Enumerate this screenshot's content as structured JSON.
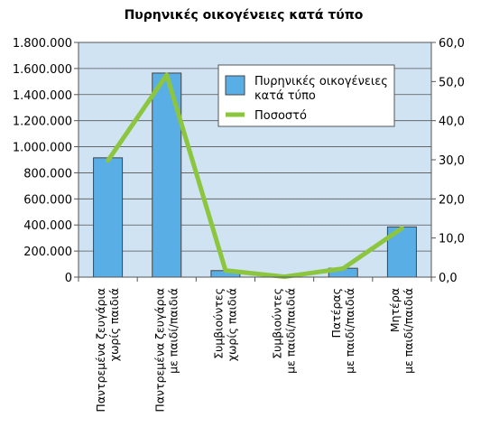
{
  "chart_data": {
    "type": "bar",
    "title": "Πυρηνικές οικογένειες κατά τύπο",
    "categories": [
      [
        "Παντρεμένα ζευγάρια",
        "χωρίς παιδιά"
      ],
      [
        "Παντρεμένα ζευγάρια",
        "με παιδί/παιδιά"
      ],
      [
        "Συμβιούντες",
        "χωρίς παιδιά"
      ],
      [
        "Συμβιούντες",
        "με παιδί/παιδιά"
      ],
      [
        "Πατέρας",
        "με παιδί/παιδιά"
      ],
      [
        "Μητέρα",
        "με παιδί/παιδιά"
      ]
    ],
    "series": [
      {
        "name": "Πυρηνικές οικογένειες κατά τύπο",
        "type": "bar",
        "axis": "left",
        "color": "#5aaee6",
        "values": [
          915000,
          1565000,
          50000,
          3000,
          68000,
          385000
        ]
      },
      {
        "name": "Ποσοστό",
        "type": "line",
        "axis": "right",
        "color": "#8cc63f",
        "values": [
          29.8,
          51.7,
          1.7,
          0.1,
          2.2,
          12.5
        ]
      }
    ],
    "ylim_left": [
      0,
      1800000
    ],
    "ylim_right": [
      0,
      60
    ],
    "yticks_left": [
      "0",
      "200.000",
      "400.000",
      "600.000",
      "800.000",
      "1.000.000",
      "1.200.000",
      "1.400.000",
      "1.600.000",
      "1.800.000"
    ],
    "yticks_right": [
      "0,0",
      "10,0",
      "20,0",
      "30,0",
      "40,0",
      "50,0",
      "60,0"
    ],
    "legend": {
      "position": "top-right",
      "bar_label_lines": [
        "Πυρηνικές οικογένειες",
        "κατά τύπο"
      ],
      "line_label": "Ποσοστό"
    },
    "plot_background": "#cfe3f3",
    "grid": true
  }
}
